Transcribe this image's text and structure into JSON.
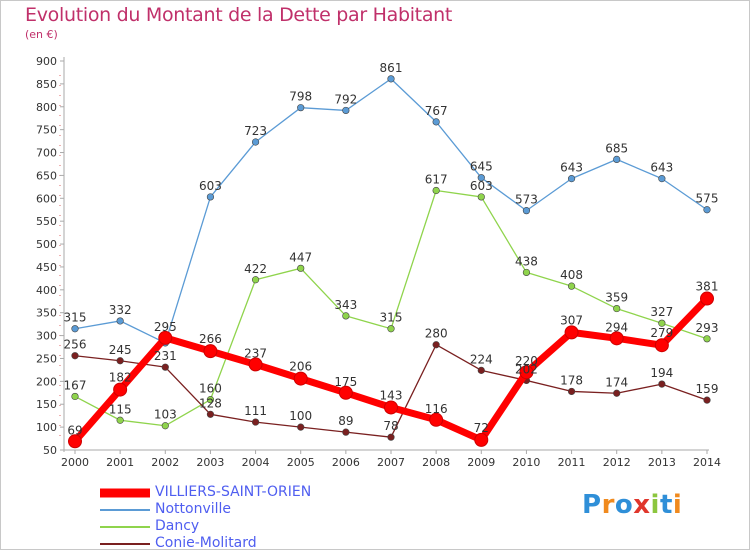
{
  "header": {
    "title": "Evolution du Montant de la Dette par Habitant",
    "subtitle": "(en €)"
  },
  "logo": {
    "text": "Proxiti"
  },
  "chart_data": {
    "type": "line",
    "title": "Evolution du Montant de la Dette par Habitant",
    "ylabel": "(en €)",
    "xlabel": "",
    "x": [
      "2000",
      "2001",
      "2002",
      "2003",
      "2004",
      "2005",
      "2006",
      "2007",
      "2008",
      "2009",
      "2010",
      "2011",
      "2012",
      "2013",
      "2014"
    ],
    "ylim": [
      50,
      900
    ],
    "yticks": [
      50,
      100,
      150,
      200,
      250,
      300,
      350,
      400,
      450,
      500,
      550,
      600,
      650,
      700,
      750,
      800,
      850,
      900
    ],
    "grid": false,
    "legend": "bottom-left",
    "series": [
      {
        "name": "VILLIERS-SAINT-ORIEN",
        "color": "#ff0000",
        "values": [
          69,
          182,
          295,
          266,
          237,
          206,
          175,
          143,
          116,
          72,
          220,
          307,
          294,
          279,
          381
        ]
      },
      {
        "name": "Nottonville",
        "color": "#5b9bd5",
        "values": [
          315,
          332,
          284,
          603,
          723,
          798,
          792,
          861,
          767,
          645,
          573,
          643,
          685,
          643,
          575
        ]
      },
      {
        "name": "Dancy",
        "color": "#8fd44c",
        "values": [
          167,
          115,
          103,
          160,
          422,
          447,
          343,
          315,
          617,
          603,
          438,
          408,
          359,
          327,
          293
        ]
      },
      {
        "name": "Conie-Molitard",
        "color": "#7a2020",
        "values": [
          256,
          245,
          231,
          128,
          111,
          100,
          89,
          78,
          280,
          224,
          202,
          178,
          174,
          194,
          159
        ]
      }
    ],
    "data_labels": [
      [
        "69",
        "182",
        "295",
        "266",
        "237",
        "206",
        "175",
        "143",
        "116",
        "72",
        "220",
        "307",
        "294",
        "279",
        "381"
      ],
      [
        "315",
        "332",
        "",
        "603",
        "723",
        "798",
        "792",
        "861",
        "767",
        "645",
        "573",
        "643",
        "685",
        "643",
        "575"
      ],
      [
        "167",
        "115",
        "103",
        "160",
        "422",
        "447",
        "343",
        "315",
        "617",
        "603",
        "438",
        "408",
        "359",
        "327",
        "293"
      ],
      [
        "256",
        "245",
        "231",
        "128",
        "111",
        "100",
        "89",
        "78",
        "280",
        "224",
        "202",
        "178",
        "174",
        "194",
        "159"
      ]
    ]
  }
}
